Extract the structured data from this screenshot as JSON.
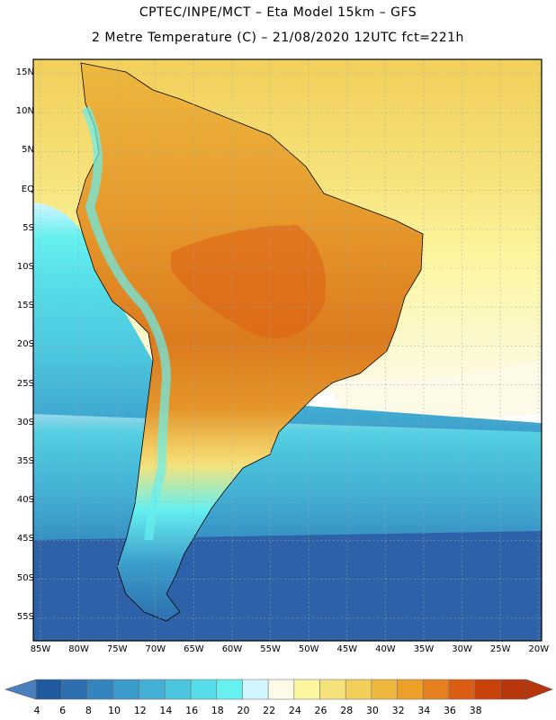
{
  "header": {
    "line1": "CPTEC/INPE/MCT –  Eta Model 15km – GFS",
    "line2": "2 Metre Temperature (C) – 21/08/2020 12UTC fct=221h"
  },
  "map": {
    "lat_labels": [
      "15N",
      "10N",
      "5N",
      "EQ",
      "5S",
      "10S",
      "15S",
      "20S",
      "25S",
      "30S",
      "35S",
      "40S",
      "45S",
      "50S",
      "55S"
    ],
    "lon_labels": [
      "85W",
      "80W",
      "75W",
      "70W",
      "65W",
      "60W",
      "55W",
      "50W",
      "45W",
      "40W",
      "35W",
      "30W",
      "25W",
      "20W"
    ]
  },
  "legend": {
    "ticks": [
      "4",
      "6",
      "8",
      "10",
      "12",
      "14",
      "16",
      "18",
      "20",
      "22",
      "24",
      "26",
      "28",
      "30",
      "32",
      "34",
      "36",
      "38"
    ],
    "colors": [
      "#1f5a9e",
      "#2e6fb0",
      "#3485be",
      "#3a9bca",
      "#44b0d6",
      "#4cc6de",
      "#55dce8",
      "#66f0f0",
      "#d2f6ff",
      "#fdfae8",
      "#fcf6a0",
      "#f6e27a",
      "#f2cf5a",
      "#eeb83e",
      "#eca028",
      "#e5801e",
      "#dc5e14",
      "#c8420a",
      "#b8360c"
    ],
    "below_color": "#4a7fc0",
    "above_color": "#b8360c"
  }
}
